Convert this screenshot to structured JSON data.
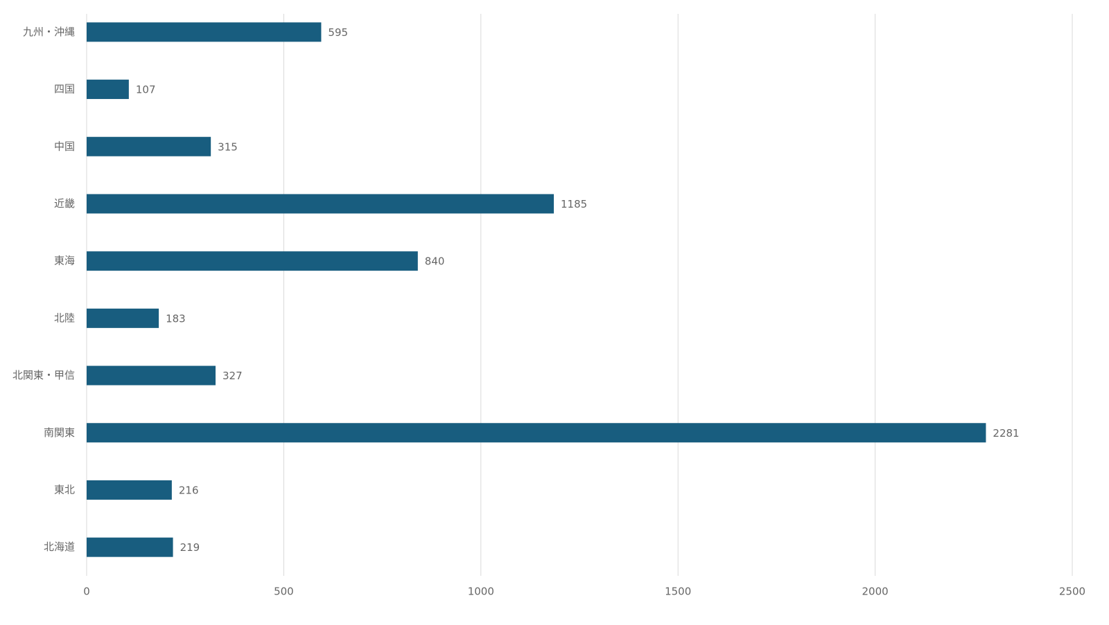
{
  "chart_data": {
    "type": "bar",
    "orientation": "horizontal",
    "categories": [
      "九州・沖縄",
      "四国",
      "中国",
      "近畿",
      "東海",
      "北陸",
      "北関東・甲信",
      "南関東",
      "東北",
      "北海道"
    ],
    "values": [
      595,
      107,
      315,
      1185,
      840,
      183,
      327,
      2281,
      216,
      219
    ],
    "color": "#185d7f",
    "xlim": [
      0,
      2500
    ],
    "xticks": [
      0,
      500,
      1000,
      1500,
      2000,
      2500
    ],
    "grid": true
  }
}
